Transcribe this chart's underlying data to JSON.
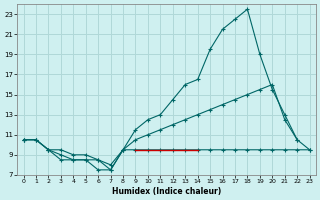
{
  "xlabel": "Humidex (Indice chaleur)",
  "bg_color": "#cff0f0",
  "grid_color": "#b0d8d8",
  "line_color": "#006666",
  "red_line_color": "#cc0000",
  "xlim": [
    -0.5,
    23.5
  ],
  "ylim": [
    7,
    24
  ],
  "yticks": [
    7,
    9,
    11,
    13,
    15,
    17,
    19,
    21,
    23
  ],
  "xticks": [
    0,
    1,
    2,
    3,
    4,
    5,
    6,
    7,
    8,
    9,
    10,
    11,
    12,
    13,
    14,
    15,
    16,
    17,
    18,
    19,
    20,
    21,
    22,
    23
  ],
  "line1_x": [
    0,
    1,
    2,
    3,
    4,
    5,
    6,
    7,
    8,
    9,
    10,
    11,
    12,
    13,
    14,
    15,
    16,
    17,
    18,
    19,
    20,
    21,
    22,
    23
  ],
  "line1_y": [
    10.5,
    10.5,
    9.5,
    8.5,
    8.5,
    8.5,
    7.5,
    7.5,
    9.5,
    9.5,
    9.5,
    9.5,
    9.5,
    9.5,
    9.5,
    9.5,
    9.5,
    9.5,
    9.5,
    9.5,
    9.5,
    9.5,
    9.5,
    9.5
  ],
  "line2_x": [
    0,
    1,
    2,
    3,
    4,
    5,
    6,
    7,
    8,
    9,
    10,
    11,
    12,
    13,
    14,
    15,
    16,
    17,
    18,
    19,
    20,
    21,
    22,
    23
  ],
  "line2_y": [
    10.5,
    10.5,
    9.5,
    9.0,
    8.5,
    8.5,
    8.5,
    8.0,
    9.5,
    10.5,
    11.0,
    11.5,
    12.0,
    12.5,
    13.0,
    13.5,
    14.0,
    14.5,
    15.0,
    15.5,
    16.0,
    12.5,
    10.5,
    9.5
  ],
  "line3_x": [
    0,
    1,
    2,
    3,
    4,
    5,
    6,
    7,
    8,
    9,
    10,
    11,
    12,
    13,
    14,
    15,
    16,
    17,
    18,
    19,
    20,
    21,
    22,
    23
  ],
  "line3_y": [
    10.5,
    10.5,
    9.5,
    9.5,
    9.0,
    9.0,
    8.5,
    7.5,
    9.5,
    11.5,
    12.5,
    13.0,
    14.5,
    16.0,
    16.5,
    19.5,
    21.5,
    22.5,
    23.5,
    19.0,
    15.5,
    13.0,
    10.5,
    null
  ],
  "red_x": [
    9,
    14
  ],
  "red_y": [
    9.5,
    9.5
  ],
  "marker": "+"
}
